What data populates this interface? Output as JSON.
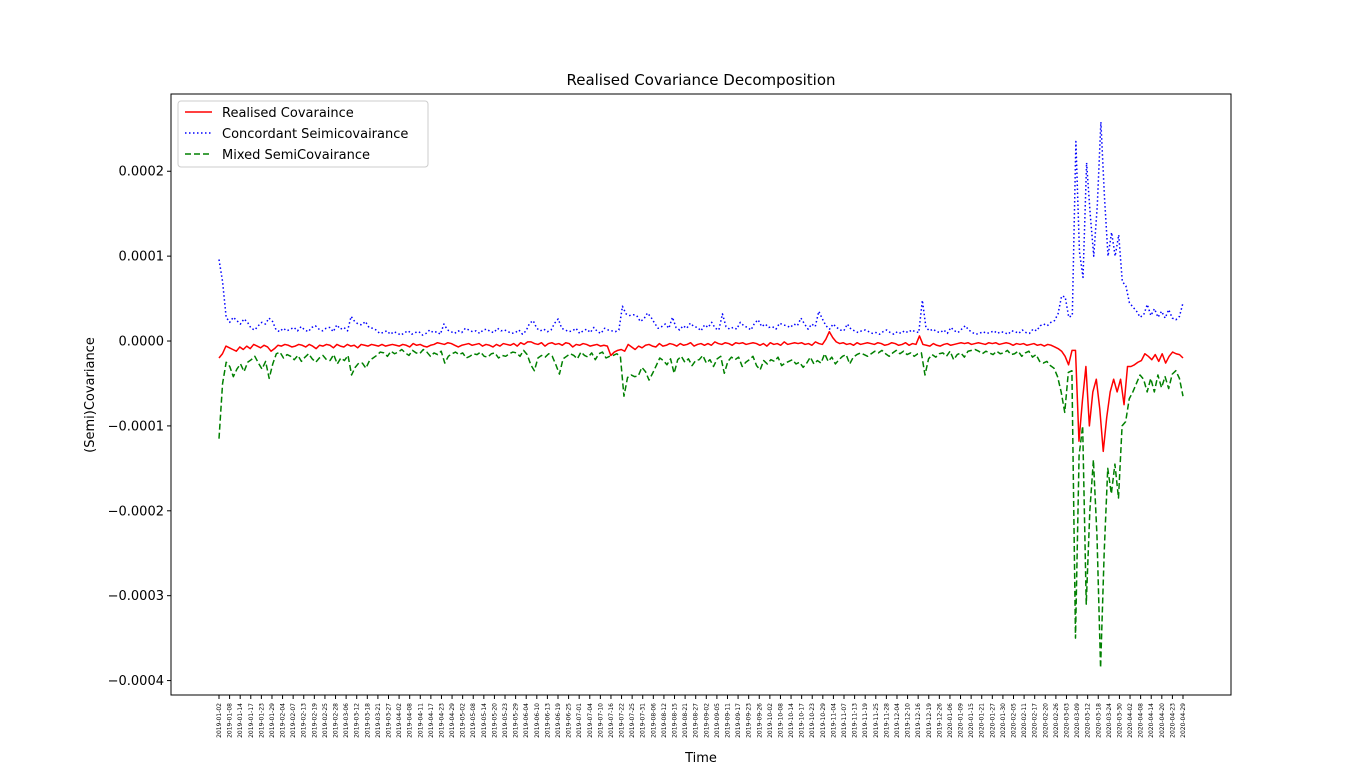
{
  "chart_data": {
    "type": "line",
    "title": "Realised Covariance Decomposition",
    "xlabel": "Time",
    "ylabel": "(Semi)Covariance",
    "ylim": [
      -0.00042,
      0.00029
    ],
    "yticks": [
      {
        "value": 0.0002,
        "label": "0.0002"
      },
      {
        "value": 0.0001,
        "label": "0.0001"
      },
      {
        "value": 0.0,
        "label": "0.0000"
      },
      {
        "value": -0.0001,
        "label": "−0.0001"
      },
      {
        "value": -0.0002,
        "label": "−0.0002"
      },
      {
        "value": -0.0003,
        "label": "−0.0003"
      },
      {
        "value": -0.0004,
        "label": "−0.0004"
      }
    ],
    "xtick_labels": [
      "2019-01-02",
      "2019-01-08",
      "2019-01-14",
      "2019-01-17",
      "2019-01-23",
      "2019-01-29",
      "2019-02-04",
      "2019-02-07",
      "2019-02-13",
      "2019-02-19",
      "2019-02-25",
      "2019-02-28",
      "2019-03-06",
      "2019-03-12",
      "2019-03-18",
      "2019-03-21",
      "2019-03-27",
      "2019-04-02",
      "2019-04-08",
      "2019-04-11",
      "2019-04-17",
      "2019-04-23",
      "2019-04-29",
      "2019-05-02",
      "2019-05-08",
      "2019-05-14",
      "2019-05-20",
      "2019-05-23",
      "2019-05-29",
      "2019-06-04",
      "2019-06-10",
      "2019-06-13",
      "2019-06-19",
      "2019-06-25",
      "2019-07-01",
      "2019-07-04",
      "2019-07-10",
      "2019-07-16",
      "2019-07-22",
      "2019-07-25",
      "2019-07-31",
      "2019-08-06",
      "2019-08-12",
      "2019-08-15",
      "2019-08-21",
      "2019-08-27",
      "2019-09-02",
      "2019-09-05",
      "2019-09-11",
      "2019-09-17",
      "2019-09-23",
      "2019-09-26",
      "2019-10-02",
      "2019-10-08",
      "2019-10-14",
      "2019-10-17",
      "2019-10-23",
      "2019-10-29",
      "2019-11-04",
      "2019-11-07",
      "2019-11-13",
      "2019-11-19",
      "2019-11-25",
      "2019-11-28",
      "2019-12-04",
      "2019-12-10",
      "2019-12-16",
      "2019-12-19",
      "2019-12-26",
      "2020-01-06",
      "2020-01-09",
      "2020-01-15",
      "2020-01-21",
      "2020-01-27",
      "2020-01-30",
      "2020-02-05",
      "2020-02-11",
      "2020-02-17",
      "2020-02-20",
      "2020-02-26",
      "2020-03-03",
      "2020-03-09",
      "2020-03-12",
      "2020-03-18",
      "2020-03-24",
      "2020-03-30",
      "2020-04-02",
      "2020-04-08",
      "2020-04-14",
      "2020-04-20",
      "2020-04-23",
      "2020-04-29"
    ],
    "legend": {
      "placement": "top-left"
    },
    "grid": false,
    "series": [
      {
        "name": "Realised Covaraince",
        "color": "#ff0000",
        "style": "solid",
        "values": [
          -2e-05,
          -1.5e-05,
          -6e-06,
          -8e-06,
          -1e-05,
          -1.2e-05,
          -7e-06,
          -1e-05,
          -6e-06,
          -9e-06,
          -4e-06,
          -6e-06,
          -8e-06,
          -5e-06,
          -7e-06,
          -1.2e-05,
          -9e-06,
          -5e-06,
          -6e-06,
          -4e-06,
          -5e-06,
          -7e-06,
          -6e-06,
          -4e-06,
          -5e-06,
          -7e-06,
          -4e-06,
          -6e-06,
          -9e-06,
          -5e-06,
          -6e-06,
          -4e-06,
          -5e-06,
          -8e-06,
          -4e-06,
          -6e-06,
          -7e-06,
          -4e-06,
          -6e-06,
          -5e-06,
          -8e-06,
          -4e-06,
          -5e-06,
          -6e-06,
          -4e-06,
          -5e-06,
          -6e-06,
          -4e-06,
          -6e-06,
          -5e-06,
          -4e-06,
          -5e-06,
          -6e-06,
          -4e-06,
          -5e-06,
          -7e-06,
          -3e-06,
          -5e-06,
          -4e-06,
          -6e-06,
          -7e-06,
          -5e-06,
          -4e-06,
          -2e-06,
          -3e-06,
          -4e-06,
          -2e-06,
          -3e-06,
          -5e-06,
          -7e-06,
          -5e-06,
          -4e-06,
          -3e-06,
          -5e-06,
          -4e-06,
          -3e-06,
          -6e-06,
          -4e-06,
          -5e-06,
          -7e-06,
          -4e-06,
          -6e-06,
          -3e-06,
          -4e-06,
          -5e-06,
          -3e-06,
          -6e-06,
          -2e-06,
          -4e-06,
          -1e-06,
          -1e-06,
          -3e-06,
          -4e-06,
          -2e-06,
          -6e-06,
          -3e-06,
          -2e-06,
          -4e-06,
          -3e-06,
          -5e-06,
          -2e-06,
          -3e-06,
          -7e-06,
          -4e-06,
          -5e-06,
          -3e-06,
          -4e-06,
          -6e-06,
          -5e-06,
          -4e-06,
          -6e-06,
          -5e-06,
          -6e-06,
          -1.7e-05,
          -1.3e-05,
          -1.1e-05,
          -1e-05,
          -1.2e-05,
          -4e-06,
          -7e-06,
          -1e-05,
          -6e-06,
          -8e-06,
          -5e-06,
          -4e-06,
          -6e-06,
          -7e-06,
          -3e-06,
          -6e-06,
          -5e-06,
          -3e-06,
          -4e-06,
          -6e-06,
          -3e-06,
          -5e-06,
          -4e-06,
          -2e-06,
          -6e-06,
          -4e-06,
          -3e-06,
          -5e-06,
          -3e-06,
          -5e-06,
          -1e-06,
          -3e-06,
          -4e-06,
          -2e-06,
          -3e-06,
          -5e-06,
          -2e-06,
          -3e-06,
          -2e-06,
          -4e-06,
          -3e-06,
          -2e-06,
          -3e-06,
          -5e-06,
          -3e-06,
          -6e-06,
          -2e-06,
          -4e-06,
          -3e-06,
          -5e-06,
          -1e-06,
          -4e-06,
          -3e-06,
          -2e-06,
          -3e-06,
          -2e-06,
          -4e-06,
          -3e-06,
          -5e-06,
          -1e-06,
          -3e-06,
          -4e-06,
          2e-06,
          1.1e-05,
          4e-06,
          -1e-06,
          -3e-06,
          -2e-06,
          -4e-06,
          -3e-06,
          -5e-06,
          -2e-06,
          -4e-06,
          -3e-06,
          -2e-06,
          -3e-06,
          -4e-06,
          -2e-06,
          -3e-06,
          -5e-06,
          -4e-06,
          -2e-06,
          -3e-06,
          -5e-06,
          -4e-06,
          -2e-06,
          -5e-06,
          -3e-06,
          -4e-06,
          6e-06,
          -4e-06,
          -5e-06,
          -6e-06,
          -3e-06,
          -5e-06,
          -6e-06,
          -4e-06,
          -3e-06,
          -5e-06,
          -4e-06,
          -3e-06,
          -2e-06,
          -3e-06,
          -2e-06,
          -4e-06,
          -3e-06,
          -2e-06,
          -3e-06,
          -4e-06,
          -2e-06,
          -3e-06,
          -2e-06,
          -4e-06,
          -3e-06,
          -2e-06,
          -3e-06,
          -5e-06,
          -3e-06,
          -4e-06,
          -3e-06,
          -5e-06,
          -4e-06,
          -3e-06,
          -5e-06,
          -4e-06,
          -6e-06,
          -4e-06,
          -5e-06,
          -7e-06,
          -9e-06,
          -1.2e-05,
          -1.8e-05,
          -2.8e-05,
          -1.1e-05,
          -1.1e-05,
          -0.000118,
          -7e-05,
          -3e-05,
          -0.0001,
          -6e-05,
          -4.5e-05,
          -8e-05,
          -0.00013,
          -9e-05,
          -6e-05,
          -4.5e-05,
          -6e-05,
          -4.5e-05,
          -7.5e-05,
          -3e-05,
          -3e-05,
          -2.8e-05,
          -2.5e-05,
          -2.3e-05,
          -1.5e-05,
          -1.8e-05,
          -2.2e-05,
          -1.6e-05,
          -2.4e-05,
          -1.5e-05,
          -2.6e-05,
          -1.8e-05,
          -1.3e-05,
          -1.5e-05,
          -1.6e-05,
          -2e-05
        ]
      },
      {
        "name": "Concordant Seimicovairance",
        "color": "#0000ff",
        "style": "dotted",
        "values": [
          9.6e-05,
          7e-05,
          2.8e-05,
          2.2e-05,
          2.8e-05,
          2.4e-05,
          2e-05,
          2.6e-05,
          2.2e-05,
          1.5e-05,
          1.3e-05,
          1.8e-05,
          2.2e-05,
          2e-05,
          2.7e-05,
          2.3e-05,
          1.3e-05,
          1.1e-05,
          1.5e-05,
          1.2e-05,
          1.4e-05,
          1.6e-05,
          1.2e-05,
          1.7e-05,
          1.3e-05,
          1.1e-05,
          1.6e-05,
          1.8e-05,
          1.4e-05,
          1.2e-05,
          1.5e-05,
          1.6e-05,
          1.1e-05,
          1.9e-05,
          1.4e-05,
          1.6e-05,
          1.2e-05,
          2.9e-05,
          2.3e-05,
          2e-05,
          1.9e-05,
          2.3e-05,
          1.6e-05,
          1.5e-05,
          1.3e-05,
          9e-06,
          1e-05,
          1.2e-05,
          8e-06,
          1.1e-05,
          9e-06,
          7e-06,
          1e-05,
          1.2e-05,
          8e-06,
          1e-05,
          1.1e-05,
          7e-06,
          9e-06,
          1.3e-05,
          1e-05,
          1.1e-05,
          8e-06,
          2e-05,
          1.3e-05,
          1.1e-05,
          9e-06,
          1.2e-05,
          1e-05,
          1.5e-05,
          1.3e-05,
          1.1e-05,
          1.2e-05,
          9e-06,
          1.3e-05,
          1.4e-05,
          1.1e-05,
          1e-05,
          1.5e-05,
          1.2e-05,
          1.3e-05,
          1.1e-05,
          9e-06,
          1e-05,
          1.3e-05,
          8e-06,
          1.2e-05,
          2.1e-05,
          2.4e-05,
          1.5e-05,
          1.2e-05,
          1.4e-05,
          1.1e-05,
          1.3e-05,
          2.1e-05,
          2.6e-05,
          1.5e-05,
          1.3e-05,
          1.1e-05,
          1.2e-05,
          1.5e-05,
          9e-06,
          1.2e-05,
          1.4e-05,
          1e-05,
          1.6e-05,
          1.1e-05,
          9e-06,
          1.5e-05,
          1.3e-05,
          1.2e-05,
          1.1e-05,
          1.3e-05,
          4.1e-05,
          3.2e-05,
          3e-05,
          3.1e-05,
          3e-05,
          2.3e-05,
          2.6e-05,
          3.3e-05,
          2.8e-05,
          2.1e-05,
          1.5e-05,
          1.7e-05,
          2e-05,
          1.5e-05,
          2.8e-05,
          1.6e-05,
          1.3e-05,
          1.8e-05,
          1.5e-05,
          2.1e-05,
          1.7e-05,
          1.6e-05,
          1.2e-05,
          1.9e-05,
          1.6e-05,
          2.2e-05,
          1.5e-05,
          1.3e-05,
          3.2e-05,
          1.7e-05,
          1.4e-05,
          1.6e-05,
          1.4e-05,
          2.2e-05,
          1.8e-05,
          1.6e-05,
          1.3e-05,
          2.1e-05,
          2.5e-05,
          1.7e-05,
          2e-05,
          1.6e-05,
          1.7e-05,
          1.4e-05,
          2.1e-05,
          1.9e-05,
          1.8e-05,
          1.6e-05,
          2e-05,
          1.8e-05,
          2.7e-05,
          2e-05,
          1.4e-05,
          2e-05,
          1.7e-05,
          3.5e-05,
          2.6e-05,
          1.8e-05,
          1.4e-05,
          2e-05,
          1.6e-05,
          1.3e-05,
          1.2e-05,
          2e-05,
          1.4e-05,
          1.2e-05,
          1e-05,
          1.2e-05,
          1.3e-05,
          1.1e-05,
          9e-06,
          1e-05,
          8e-06,
          1.1e-05,
          1.3e-05,
          1e-05,
          8e-06,
          1.1e-05,
          9e-06,
          1.2e-05,
          1e-05,
          1.3e-05,
          1.1e-05,
          1e-05,
          4.8e-05,
          1.6e-05,
          1.2e-05,
          1.4e-05,
          1.1e-05,
          1e-05,
          1.3e-05,
          9e-06,
          1.6e-05,
          1.2e-05,
          1e-05,
          1.4e-05,
          1.8e-05,
          1.3e-05,
          1e-05,
          8e-06,
          9e-06,
          1.1e-05,
          9e-06,
          1e-05,
          1.2e-05,
          9e-06,
          1.1e-05,
          1e-05,
          8e-06,
          1.2e-05,
          1.1e-05,
          9e-06,
          1.3e-05,
          1e-05,
          9e-06,
          1.4e-05,
          1.2e-05,
          1.8e-05,
          2e-05,
          1.8e-05,
          2.2e-05,
          2.4e-05,
          3.2e-05,
          5.3e-05,
          5.2e-05,
          2.8e-05,
          3e-05,
          0.000235,
          0.000105,
          7.5e-05,
          0.00021,
          0.00015,
          0.0001,
          0.00016,
          0.000258,
          0.00017,
          0.0001,
          0.000128,
          0.0001,
          0.000125,
          7e-05,
          6.5e-05,
          4.5e-05,
          4e-05,
          3.5e-05,
          2.8e-05,
          3.1e-05,
          4.3e-05,
          3e-05,
          3.8e-05,
          2.8e-05,
          3.5e-05,
          2.7e-05,
          3.7e-05,
          2.7e-05,
          2.5e-05,
          2.9e-05,
          4.5e-05
        ]
      },
      {
        "name": "Mixed SemiCovairance",
        "color": "#008000",
        "style": "dashed",
        "values": [
          -0.000115,
          -5e-05,
          -2.5e-05,
          -3e-05,
          -4.2e-05,
          -3.3e-05,
          -2.7e-05,
          -3.6e-05,
          -2.5e-05,
          -2.2e-05,
          -1.8e-05,
          -2.6e-05,
          -3.3e-05,
          -2.4e-05,
          -4.4e-05,
          -2.7e-05,
          -1.5e-05,
          -1.3e-05,
          -2e-05,
          -1.6e-05,
          -1.8e-05,
          -2.2e-05,
          -1.7e-05,
          -2.4e-05,
          -1.9e-05,
          -1.5e-05,
          -2.1e-05,
          -2.5e-05,
          -2e-05,
          -1.7e-05,
          -2.2e-05,
          -2.3e-05,
          -1.6e-05,
          -2.7e-05,
          -2e-05,
          -2.3e-05,
          -1.7e-05,
          -4e-05,
          -3.1e-05,
          -2.6e-05,
          -2.6e-05,
          -3.2e-05,
          -2.3e-05,
          -2e-05,
          -1.7e-05,
          -1.3e-05,
          -1.4e-05,
          -1.8e-05,
          -1.2e-05,
          -1.5e-05,
          -1.3e-05,
          -1e-05,
          -1.4e-05,
          -1.7e-05,
          -1.1e-05,
          -1.4e-05,
          -1.5e-05,
          -1e-05,
          -1.3e-05,
          -1.8e-05,
          -1.4e-05,
          -1.6e-05,
          -1.2e-05,
          -2.6e-05,
          -1.8e-05,
          -1.5e-05,
          -1.3e-05,
          -1.6e-05,
          -1.4e-05,
          -2e-05,
          -1.8e-05,
          -1.5e-05,
          -1.6e-05,
          -1.3e-05,
          -1.8e-05,
          -1.9e-05,
          -1.5e-05,
          -1.4e-05,
          -2e-05,
          -1.7e-05,
          -1.8e-05,
          -1.5e-05,
          -1.3e-05,
          -1.4e-05,
          -1.8e-05,
          -1.1e-05,
          -1.6e-05,
          -2.8e-05,
          -3.5e-05,
          -2e-05,
          -1.7e-05,
          -1.9e-05,
          -1.5e-05,
          -1.8e-05,
          -2.8e-05,
          -3.9e-05,
          -2.1e-05,
          -1.8e-05,
          -1.5e-05,
          -1.7e-05,
          -2.1e-05,
          -1.3e-05,
          -1.7e-05,
          -1.9e-05,
          -1.4e-05,
          -2.2e-05,
          -1.5e-05,
          -1.3e-05,
          -2e-05,
          -1.8e-05,
          -1.7e-05,
          -1.5e-05,
          -1.8e-05,
          -6.5e-05,
          -4.3e-05,
          -4e-05,
          -4.2e-05,
          -4.1e-05,
          -3.1e-05,
          -3.6e-05,
          -4.6e-05,
          -3.8e-05,
          -2.9e-05,
          -2e-05,
          -2.3e-05,
          -2.8e-05,
          -2.1e-05,
          -3.8e-05,
          -2.2e-05,
          -1.8e-05,
          -2.5e-05,
          -2.1e-05,
          -2.9e-05,
          -2.3e-05,
          -2.2e-05,
          -1.7e-05,
          -2.6e-05,
          -2.2e-05,
          -3e-05,
          -2.1e-05,
          -1.8e-05,
          -3.8e-05,
          -2.4e-05,
          -1.9e-05,
          -2.2e-05,
          -1.9e-05,
          -3e-05,
          -2.5e-05,
          -2.2e-05,
          -1.8e-05,
          -2.9e-05,
          -3.4e-05,
          -2.3e-05,
          -2.7e-05,
          -2.2e-05,
          -2.4e-05,
          -1.9e-05,
          -2.9e-05,
          -2.6e-05,
          -2.4e-05,
          -2.2e-05,
          -2.7e-05,
          -2.5e-05,
          -3.1e-05,
          -2.6e-05,
          -1.9e-05,
          -2.7e-05,
          -2.3e-05,
          -2.6e-05,
          -1.5e-05,
          -2.4e-05,
          -1.9e-05,
          -2.7e-05,
          -2.2e-05,
          -1.8e-05,
          -1.6e-05,
          -2.7e-05,
          -1.9e-05,
          -1.6e-05,
          -1.4e-05,
          -1.6e-05,
          -1.8e-05,
          -1.5e-05,
          -1.2e-05,
          -1.4e-05,
          -1.1e-05,
          -1.5e-05,
          -1.8e-05,
          -1.4e-05,
          -1.1e-05,
          -1.5e-05,
          -1.2e-05,
          -1.6e-05,
          -1.4e-05,
          -1.8e-05,
          -1.5e-05,
          -1.4e-05,
          -4e-05,
          -2.1e-05,
          -1.6e-05,
          -1.9e-05,
          -1.5e-05,
          -1.4e-05,
          -1.8e-05,
          -1.2e-05,
          -2.2e-05,
          -1.6e-05,
          -1.4e-05,
          -1.9e-05,
          -1.2e-05,
          -1.1e-05,
          -1e-05,
          -1.2e-05,
          -1.5e-05,
          -1.2e-05,
          -1.4e-05,
          -1.6e-05,
          -1.2e-05,
          -1.5e-05,
          -1.4e-05,
          -1.1e-05,
          -1.6e-05,
          -1.5e-05,
          -1.2e-05,
          -1.8e-05,
          -1.4e-05,
          -1.2e-05,
          -1.9e-05,
          -1.6e-05,
          -2.4e-05,
          -2.6e-05,
          -2.4e-05,
          -2.9e-05,
          -3.2e-05,
          -4.2e-05,
          -6e-05,
          -8.4e-05,
          -3.7e-05,
          -3.5e-05,
          -0.00035,
          -0.000135,
          -0.0001,
          -0.00031,
          -0.0002,
          -0.00014,
          -0.00023,
          -0.000385,
          -0.00025,
          -0.00015,
          -0.00018,
          -0.000145,
          -0.000185,
          -0.0001,
          -9.5e-05,
          -6.8e-05,
          -6e-05,
          -5e-05,
          -4e-05,
          -4.5e-05,
          -6e-05,
          -4.4e-05,
          -6e-05,
          -4e-05,
          -5.5e-05,
          -4.2e-05,
          -5.6e-05,
          -3.9e-05,
          -3.5e-05,
          -4.4e-05,
          -6.5e-05
        ]
      }
    ]
  }
}
